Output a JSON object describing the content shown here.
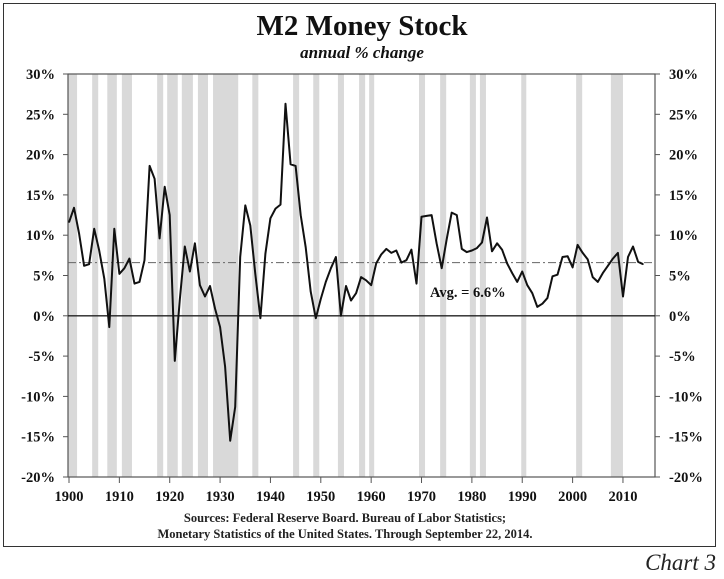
{
  "chart_data": {
    "type": "line",
    "title": "M2 Money Stock",
    "subtitle": "annual % change",
    "xlabel": "",
    "ylabel": "",
    "xlim": [
      1900,
      2016
    ],
    "ylim": [
      -20,
      30
    ],
    "y_ticks": [
      "30%",
      "25%",
      "20%",
      "15%",
      "10%",
      "5%",
      "0%",
      "-5%",
      "-10%",
      "-15%",
      "-20%"
    ],
    "y_tick_values": [
      30,
      25,
      20,
      15,
      10,
      5,
      0,
      -5,
      -10,
      -15,
      -20
    ],
    "x_ticks": [
      "1900",
      "1910",
      "1920",
      "1930",
      "1940",
      "1950",
      "1960",
      "1970",
      "1980",
      "1990",
      "2000",
      "2010"
    ],
    "x_tick_values": [
      1900,
      1910,
      1920,
      1930,
      1940,
      1950,
      1960,
      1970,
      1980,
      1990,
      2000,
      2010
    ],
    "grid": false,
    "legend": "none",
    "series_color": "#111111",
    "shading_color": "#d9d9d9",
    "average": {
      "value": 6.6,
      "label": "Avg. = 6.6%",
      "color": "#666666"
    },
    "shaded_periods": [
      [
        1899.6,
        1901.6
      ],
      [
        1904.6,
        1905.8
      ],
      [
        1907.6,
        1909.5
      ],
      [
        1910.5,
        1912.5
      ],
      [
        1917.5,
        1918.7
      ],
      [
        1919.5,
        1921.6
      ],
      [
        1922.4,
        1924.6
      ],
      [
        1925.6,
        1927.6
      ],
      [
        1928.6,
        1933.6
      ],
      [
        1936.4,
        1937.6
      ],
      [
        1944.5,
        1945.7
      ],
      [
        1948.5,
        1949.7
      ],
      [
        1953.4,
        1954.6
      ],
      [
        1957.6,
        1958.8
      ],
      [
        1959.6,
        1960.6
      ],
      [
        1969.5,
        1970.7
      ],
      [
        1973.7,
        1974.9
      ],
      [
        1979.6,
        1980.8
      ],
      [
        1981.6,
        1982.8
      ],
      [
        1989.8,
        1990.8
      ],
      [
        2000.7,
        2001.9
      ],
      [
        2007.6,
        2010.0
      ]
    ],
    "x": [
      1900,
      1901,
      1902,
      1903,
      1904,
      1905,
      1906,
      1907,
      1908,
      1909,
      1910,
      1911,
      1912,
      1913,
      1914,
      1915,
      1916,
      1917,
      1918,
      1919,
      1920,
      1921,
      1922,
      1923,
      1924,
      1925,
      1926,
      1927,
      1928,
      1929,
      1930,
      1931,
      1932,
      1933,
      1934,
      1935,
      1936,
      1937,
      1938,
      1939,
      1940,
      1941,
      1942,
      1943,
      1944,
      1945,
      1946,
      1947,
      1948,
      1949,
      1950,
      1951,
      1952,
      1953,
      1954,
      1955,
      1956,
      1957,
      1958,
      1959,
      1960,
      1961,
      1962,
      1963,
      1964,
      1965,
      1966,
      1967,
      1968,
      1969,
      1970,
      1971,
      1972,
      1973,
      1974,
      1975,
      1976,
      1977,
      1978,
      1979,
      1980,
      1981,
      1982,
      1983,
      1984,
      1985,
      1986,
      1987,
      1988,
      1989,
      1990,
      1991,
      1992,
      1993,
      1994,
      1995,
      1996,
      1997,
      1998,
      1999,
      2000,
      2001,
      2002,
      2003,
      2004,
      2005,
      2006,
      2007,
      2008,
      2009,
      2010,
      2011,
      2012,
      2013,
      2014
    ],
    "values": [
      11.6,
      13.4,
      10.2,
      6.2,
      6.4,
      10.8,
      8.1,
      4.6,
      -1.4,
      10.8,
      5.2,
      5.9,
      7.1,
      4.0,
      4.2,
      6.9,
      18.6,
      17.0,
      9.6,
      16.0,
      12.5,
      -5.6,
      2.0,
      8.6,
      5.5,
      9.0,
      3.8,
      2.4,
      3.7,
      0.9,
      -1.4,
      -6.3,
      -15.5,
      -11.3,
      7.3,
      13.7,
      11.2,
      5.2,
      -0.3,
      7.7,
      12.1,
      13.3,
      13.8,
      26.3,
      18.8,
      18.6,
      12.5,
      8.5,
      3.0,
      -0.3,
      2.1,
      4.2,
      5.9,
      7.3,
      0.0,
      3.7,
      1.9,
      2.8,
      4.8,
      4.4,
      3.8,
      6.5,
      7.6,
      8.3,
      7.8,
      8.1,
      6.6,
      6.9,
      8.2,
      4.0,
      12.3,
      12.4,
      12.5,
      9.0,
      5.9,
      9.5,
      12.8,
      12.5,
      8.3,
      7.9,
      8.1,
      8.4,
      9.1,
      12.2,
      8.0,
      9.0,
      8.2,
      6.5,
      5.3,
      4.2,
      5.5,
      3.8,
      2.8,
      1.1,
      1.5,
      2.2,
      4.9,
      5.1,
      7.3,
      7.4,
      6.0,
      8.8,
      7.8,
      7.0,
      4.8,
      4.2,
      5.3,
      6.2,
      7.1,
      7.8,
      2.4,
      7.3,
      8.6,
      6.7,
      6.4
    ]
  },
  "footer": {
    "sources_line1": "Sources: Federal Reserve Board. Bureau of Labor Statistics;",
    "sources_line2": "Monetary Statistics of the United States. Through September 22, 2014.",
    "chart_number": "Chart 3"
  }
}
